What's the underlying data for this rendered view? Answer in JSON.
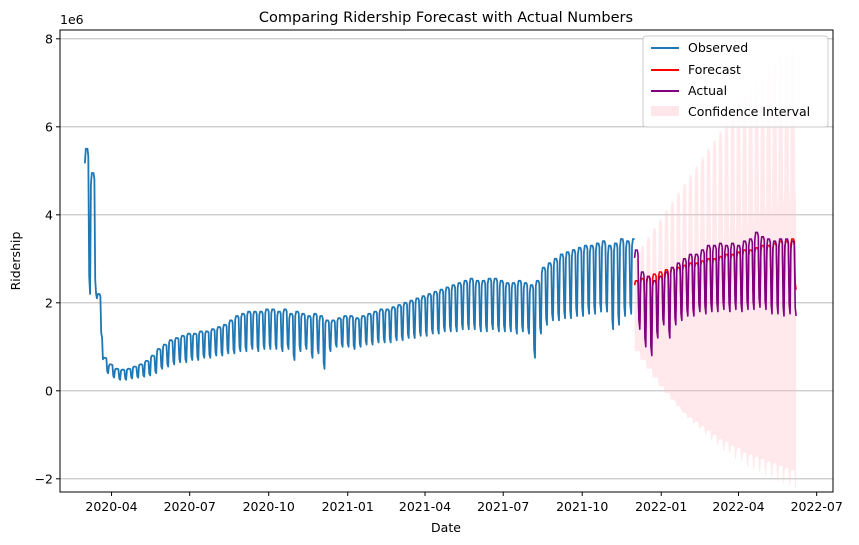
{
  "chart_data": {
    "type": "line",
    "title": "Comparing Ridership Forecast with Actual Numbers",
    "xlabel": "Date",
    "ylabel": "Ridership",
    "y_offset_label": "1e6",
    "x_range": [
      "2020-02-01",
      "2022-07-20"
    ],
    "ylim": [
      -2.3,
      8.2
    ],
    "x_ticks": [
      "2020-04",
      "2020-07",
      "2020-10",
      "2021-01",
      "2021-04",
      "2021-07",
      "2021-10",
      "2022-01",
      "2022-04",
      "2022-07"
    ],
    "y_ticks": [
      -2,
      0,
      2,
      4,
      6,
      8
    ],
    "grid": "horizontal",
    "legend_position": "top-right",
    "colors": {
      "observed": "#1f77b4",
      "forecast": "#ff0000",
      "actual": "#800080",
      "confidence": "#ffc0cb"
    },
    "legend": {
      "observed": "Observed",
      "forecast": "Forecast",
      "actual": "Actual",
      "confidence": "Confidence Interval"
    },
    "observed_start": "2020-03-01",
    "forecast_start": "2021-12-01",
    "forecast_end": "2022-06-07",
    "observed_weekly": [
      [
        2.2,
        5.5
      ],
      [
        2.2,
        4.95
      ],
      [
        1.2,
        2.2
      ],
      [
        0.4,
        0.75
      ],
      [
        0.3,
        0.6
      ],
      [
        0.25,
        0.5
      ],
      [
        0.25,
        0.48
      ],
      [
        0.28,
        0.5
      ],
      [
        0.3,
        0.55
      ],
      [
        0.32,
        0.6
      ],
      [
        0.35,
        0.68
      ],
      [
        0.4,
        0.8
      ],
      [
        0.5,
        0.95
      ],
      [
        0.55,
        1.05
      ],
      [
        0.6,
        1.15
      ],
      [
        0.65,
        1.2
      ],
      [
        0.65,
        1.25
      ],
      [
        0.7,
        1.3
      ],
      [
        0.7,
        1.3
      ],
      [
        0.75,
        1.35
      ],
      [
        0.75,
        1.35
      ],
      [
        0.8,
        1.4
      ],
      [
        0.8,
        1.45
      ],
      [
        0.85,
        1.5
      ],
      [
        0.85,
        1.6
      ],
      [
        0.9,
        1.7
      ],
      [
        0.9,
        1.75
      ],
      [
        0.95,
        1.8
      ],
      [
        0.9,
        1.8
      ],
      [
        0.95,
        1.8
      ],
      [
        0.95,
        1.85
      ],
      [
        0.95,
        1.85
      ],
      [
        0.9,
        1.8
      ],
      [
        0.95,
        1.85
      ],
      [
        0.7,
        1.75
      ],
      [
        0.9,
        1.8
      ],
      [
        0.95,
        1.75
      ],
      [
        0.75,
        1.7
      ],
      [
        0.85,
        1.75
      ],
      [
        0.5,
        1.7
      ],
      [
        0.9,
        1.6
      ],
      [
        1.0,
        1.6
      ],
      [
        1.0,
        1.65
      ],
      [
        1.0,
        1.7
      ],
      [
        0.95,
        1.7
      ],
      [
        1.0,
        1.65
      ],
      [
        1.05,
        1.7
      ],
      [
        1.05,
        1.75
      ],
      [
        1.1,
        1.8
      ],
      [
        1.1,
        1.85
      ],
      [
        1.1,
        1.85
      ],
      [
        1.15,
        1.9
      ],
      [
        1.15,
        1.95
      ],
      [
        1.2,
        2.0
      ],
      [
        1.2,
        2.05
      ],
      [
        1.25,
        2.1
      ],
      [
        1.25,
        2.15
      ],
      [
        1.3,
        2.2
      ],
      [
        1.3,
        2.25
      ],
      [
        1.35,
        2.3
      ],
      [
        1.35,
        2.35
      ],
      [
        1.35,
        2.4
      ],
      [
        1.4,
        2.45
      ],
      [
        1.4,
        2.5
      ],
      [
        1.4,
        2.55
      ],
      [
        1.35,
        2.5
      ],
      [
        1.35,
        2.5
      ],
      [
        1.4,
        2.55
      ],
      [
        1.35,
        2.55
      ],
      [
        1.35,
        2.5
      ],
      [
        1.35,
        2.45
      ],
      [
        1.3,
        2.45
      ],
      [
        1.35,
        2.5
      ],
      [
        1.3,
        2.45
      ],
      [
        0.75,
        2.4
      ],
      [
        1.3,
        2.5
      ],
      [
        1.5,
        2.8
      ],
      [
        1.6,
        2.9
      ],
      [
        1.6,
        3.0
      ],
      [
        1.65,
        3.1
      ],
      [
        1.65,
        3.15
      ],
      [
        1.7,
        3.2
      ],
      [
        1.7,
        3.25
      ],
      [
        1.75,
        3.3
      ],
      [
        1.75,
        3.3
      ],
      [
        1.8,
        3.35
      ],
      [
        1.8,
        3.4
      ],
      [
        1.4,
        3.3
      ],
      [
        1.5,
        3.35
      ],
      [
        1.7,
        3.45
      ],
      [
        1.75,
        3.4
      ],
      [
        1.8,
        3.45
      ]
    ],
    "forecast_weekly": [
      [
        1.5,
        2.5
      ],
      [
        1.6,
        2.55
      ],
      [
        1.65,
        2.6
      ],
      [
        1.7,
        2.65
      ],
      [
        1.75,
        2.7
      ],
      [
        1.75,
        2.75
      ],
      [
        1.8,
        2.8
      ],
      [
        1.8,
        2.8
      ],
      [
        1.85,
        2.85
      ],
      [
        1.85,
        2.9
      ],
      [
        1.9,
        2.9
      ],
      [
        1.9,
        2.95
      ],
      [
        1.95,
        3.0
      ],
      [
        1.95,
        3.0
      ],
      [
        2.0,
        3.05
      ],
      [
        2.0,
        3.1
      ],
      [
        2.05,
        3.1
      ],
      [
        2.05,
        3.15
      ],
      [
        2.1,
        3.2
      ],
      [
        2.1,
        3.2
      ],
      [
        2.15,
        3.25
      ],
      [
        2.15,
        3.3
      ],
      [
        2.2,
        3.3
      ],
      [
        2.2,
        3.35
      ],
      [
        2.25,
        3.4
      ],
      [
        2.25,
        3.4
      ],
      [
        2.3,
        3.45
      ]
    ],
    "actual_weekly": [
      [
        1.4,
        3.2
      ],
      [
        1.0,
        2.7
      ],
      [
        0.8,
        2.6
      ],
      [
        1.2,
        2.5
      ],
      [
        1.5,
        2.6
      ],
      [
        1.2,
        2.7
      ],
      [
        1.5,
        2.8
      ],
      [
        1.6,
        2.9
      ],
      [
        1.7,
        3.0
      ],
      [
        1.7,
        3.1
      ],
      [
        1.8,
        3.1
      ],
      [
        1.75,
        3.2
      ],
      [
        1.8,
        3.3
      ],
      [
        1.8,
        3.3
      ],
      [
        1.85,
        3.35
      ],
      [
        1.8,
        3.3
      ],
      [
        1.85,
        3.35
      ],
      [
        1.8,
        3.3
      ],
      [
        1.85,
        3.4
      ],
      [
        1.85,
        3.45
      ],
      [
        1.9,
        3.6
      ],
      [
        1.85,
        3.5
      ],
      [
        1.75,
        3.45
      ],
      [
        1.75,
        3.4
      ],
      [
        1.7,
        3.45
      ],
      [
        1.75,
        3.45
      ],
      [
        1.7,
        3.4
      ]
    ],
    "ci_weekly": [
      [
        0.9,
        3.0
      ],
      [
        0.7,
        3.3
      ],
      [
        0.5,
        3.5
      ],
      [
        0.3,
        3.7
      ],
      [
        0.1,
        3.9
      ],
      [
        -0.05,
        4.1
      ],
      [
        -0.2,
        4.3
      ],
      [
        -0.35,
        4.5
      ],
      [
        -0.5,
        4.7
      ],
      [
        -0.6,
        4.9
      ],
      [
        -0.7,
        5.1
      ],
      [
        -0.8,
        5.3
      ],
      [
        -0.9,
        5.5
      ],
      [
        -1.0,
        5.7
      ],
      [
        -1.1,
        5.9
      ],
      [
        -1.15,
        6.1
      ],
      [
        -1.25,
        6.3
      ],
      [
        -1.3,
        6.5
      ],
      [
        -1.4,
        6.7
      ],
      [
        -1.45,
        6.85
      ],
      [
        -1.5,
        7.0
      ],
      [
        -1.55,
        7.15
      ],
      [
        -1.6,
        7.3
      ],
      [
        -1.65,
        7.45
      ],
      [
        -1.7,
        7.6
      ],
      [
        -1.75,
        7.7
      ],
      [
        -1.8,
        7.8
      ]
    ]
  }
}
